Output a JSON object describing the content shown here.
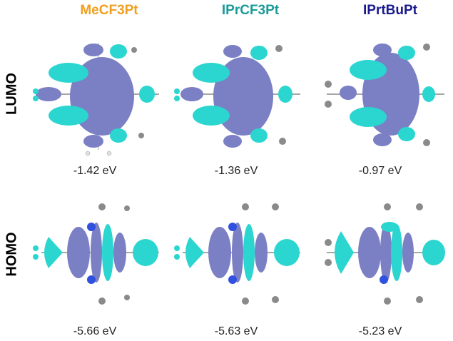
{
  "columns": [
    {
      "title": "MeCF3Pt",
      "color": "#f0a020",
      "lumo": "-1.42 eV",
      "homo": "-5.66 eV"
    },
    {
      "title": "IPrCF3Pt",
      "color": "#1a9a9a",
      "lumo": "-1.36 eV",
      "homo": "-5.63 eV"
    },
    {
      "title": "IPrtBuPt",
      "color": "#1a1a8c",
      "lumo": "-0.97 eV",
      "homo": "-5.23 eV"
    }
  ],
  "rows": {
    "lumo_label": "LUMO",
    "homo_label": "HOMO"
  },
  "colors": {
    "lobe_positive": "#7b7fc4",
    "lobe_negative": "#2ad6cf",
    "atom_carbon": "#8a8a8a",
    "atom_hydrogen": "#e8e8e8",
    "atom_nitrogen": "#3050e0"
  }
}
